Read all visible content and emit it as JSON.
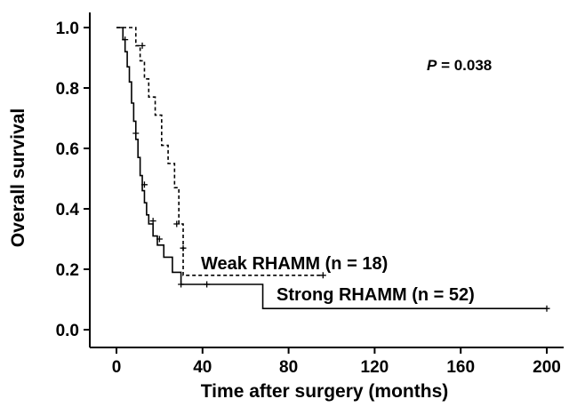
{
  "chart_data": {
    "type": "line",
    "subtype": "kaplan-meier step",
    "xlabel": "Time after surgery (months)",
    "ylabel": "Overall survival",
    "xlim": [
      0,
      200
    ],
    "ylim": [
      0,
      1.0
    ],
    "xticks": [
      "0",
      "40",
      "80",
      "120",
      "160",
      "200"
    ],
    "yticks": [
      "0.0",
      "0.2",
      "0.4",
      "0.6",
      "0.8",
      "1.0"
    ],
    "grid": false,
    "annotation": {
      "p_label": "P",
      "p_value": " = 0.038"
    },
    "series": [
      {
        "name": "Weak RHAMM (n = 18)",
        "line_style": "dashed",
        "x": [
          0,
          9,
          11,
          13,
          15,
          18,
          21,
          24,
          27,
          29,
          31,
          96
        ],
        "y": [
          1.0,
          0.94,
          0.89,
          0.83,
          0.77,
          0.71,
          0.61,
          0.55,
          0.47,
          0.35,
          0.18,
          0.18
        ],
        "censored": [
          {
            "x": 12,
            "y": 0.94
          },
          {
            "x": 28,
            "y": 0.35
          },
          {
            "x": 31,
            "y": 0.27
          },
          {
            "x": 96,
            "y": 0.18
          }
        ]
      },
      {
        "name": "Strong RHAMM (n = 52)",
        "line_style": "solid",
        "x": [
          0,
          3,
          4,
          5,
          6,
          7,
          8,
          9,
          10,
          11,
          12,
          13,
          14,
          15,
          17,
          19,
          22,
          26,
          30,
          68,
          200
        ],
        "y": [
          1.0,
          0.96,
          0.92,
          0.87,
          0.82,
          0.75,
          0.69,
          0.63,
          0.57,
          0.51,
          0.46,
          0.42,
          0.38,
          0.35,
          0.31,
          0.28,
          0.24,
          0.19,
          0.15,
          0.07,
          0.07
        ],
        "censored": [
          {
            "x": 4,
            "y": 0.96
          },
          {
            "x": 9,
            "y": 0.65
          },
          {
            "x": 13,
            "y": 0.48
          },
          {
            "x": 17,
            "y": 0.36
          },
          {
            "x": 20,
            "y": 0.3
          },
          {
            "x": 30,
            "y": 0.15
          },
          {
            "x": 42,
            "y": 0.15
          },
          {
            "x": 200,
            "y": 0.07
          }
        ]
      }
    ]
  }
}
